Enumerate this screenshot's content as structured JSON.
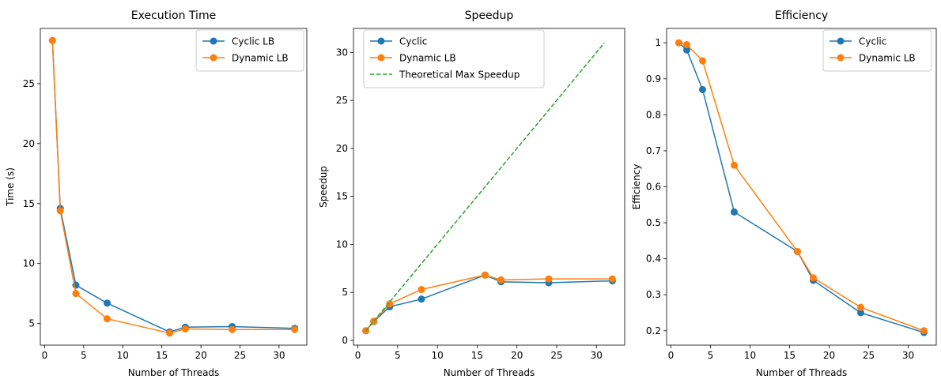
{
  "chart_data": [
    {
      "type": "line",
      "title": "Execution Time",
      "xlabel": "Number of Threads",
      "ylabel": "Time (s)",
      "xlim": [
        -0.55,
        33.55
      ],
      "ylim": [
        3.2,
        29.6
      ],
      "xticks": [
        0,
        5,
        10,
        15,
        20,
        25,
        30
      ],
      "yticks": [
        5,
        10,
        15,
        20,
        25
      ],
      "legend_position": "upper right",
      "x": [
        1,
        2,
        4,
        8,
        16,
        18,
        24,
        32
      ],
      "series": [
        {
          "name": "Cyclic LB",
          "color": "#1f77b4",
          "style": "solid",
          "marker": "circle",
          "values": [
            28.6,
            14.6,
            8.2,
            6.7,
            4.3,
            4.7,
            4.75,
            4.6
          ]
        },
        {
          "name": "Dynamic LB",
          "color": "#ff7f0e",
          "style": "solid",
          "marker": "circle",
          "values": [
            28.6,
            14.4,
            7.5,
            5.4,
            4.2,
            4.55,
            4.5,
            4.5
          ]
        }
      ]
    },
    {
      "type": "line",
      "title": "Speedup",
      "xlabel": "Number of Threads",
      "ylabel": "Speedup",
      "xlim": [
        -0.55,
        33.55
      ],
      "ylim": [
        -0.5,
        32.5
      ],
      "xticks": [
        0,
        5,
        10,
        15,
        20,
        25,
        30
      ],
      "yticks": [
        0,
        5,
        10,
        15,
        20,
        25,
        30
      ],
      "legend_position": "upper left",
      "series": [
        {
          "name": "Cyclic",
          "color": "#1f77b4",
          "style": "solid",
          "marker": "circle",
          "x": [
            1,
            2,
            4,
            8,
            16,
            18,
            24,
            32
          ],
          "values": [
            1.0,
            1.95,
            3.5,
            4.3,
            6.8,
            6.1,
            6.0,
            6.2
          ]
        },
        {
          "name": "Dynamic LB",
          "color": "#ff7f0e",
          "style": "solid",
          "marker": "circle",
          "x": [
            1,
            2,
            4,
            8,
            16,
            18,
            24,
            32
          ],
          "values": [
            1.0,
            2.0,
            3.8,
            5.3,
            6.8,
            6.3,
            6.4,
            6.4
          ]
        },
        {
          "name": "Theoretical Max Speedup",
          "color": "#2ca02c",
          "style": "dashed",
          "marker": "none",
          "x": [
            1,
            31
          ],
          "values": [
            1,
            31
          ]
        }
      ]
    },
    {
      "type": "line",
      "title": "Efficiency",
      "xlabel": "Number of Threads",
      "ylabel": "Efficiency",
      "xlim": [
        -0.55,
        33.55
      ],
      "ylim": [
        0.16,
        1.04
      ],
      "xticks": [
        0,
        5,
        10,
        15,
        20,
        25,
        30
      ],
      "yticks": [
        0.2,
        0.3,
        0.4,
        0.5,
        0.6,
        0.7,
        0.8,
        0.9,
        1.0
      ],
      "legend_position": "upper right",
      "x": [
        1,
        2,
        4,
        8,
        16,
        18,
        24,
        32
      ],
      "series": [
        {
          "name": "Cyclic",
          "color": "#1f77b4",
          "style": "solid",
          "marker": "circle",
          "values": [
            1.0,
            0.98,
            0.87,
            0.53,
            0.42,
            0.34,
            0.25,
            0.195
          ]
        },
        {
          "name": "Dynamic LB",
          "color": "#ff7f0e",
          "style": "solid",
          "marker": "circle",
          "values": [
            1.0,
            0.995,
            0.95,
            0.66,
            0.42,
            0.347,
            0.265,
            0.2
          ]
        }
      ]
    }
  ]
}
